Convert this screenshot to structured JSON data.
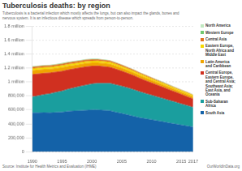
{
  "chart_data": {
    "type": "area",
    "title": "Tuberculosis deaths: by region",
    "subtitle": "Tuberculosis is a bacterial infection which mostly affects the lungs, but can also impact the glands, bones and\nnervous system. It is an infectious disease which spreads from person-to-person.",
    "annotations": [
      "Source: Institute for Health Metrics and Evaluation (IHME)",
      "OurWorldInData.org"
    ],
    "x": [
      1990,
      1991,
      1992,
      1993,
      1994,
      1995,
      1996,
      1997,
      1998,
      1999,
      2000,
      2001,
      2002,
      2003,
      2004,
      2005,
      2006,
      2007,
      2008,
      2009,
      2010,
      2011,
      2012,
      2013,
      2014,
      2015,
      2016,
      2017
    ],
    "series": [
      {
        "name": "South Asia",
        "color": "#1462a8",
        "values": [
          560000,
          562000,
          565000,
          562000,
          566000,
          571000,
          581000,
          586000,
          591000,
          596000,
          601000,
          601000,
          596000,
          591000,
          571000,
          551000,
          531000,
          511000,
          491000,
          476000,
          461000,
          446000,
          431000,
          416000,
          401000,
          386000,
          371000,
          356000
        ]
      },
      {
        "name": "Sub-Saharan\nAfrica",
        "color": "#1a9e9e",
        "values": [
          230000,
          242000,
          256000,
          271000,
          286000,
          301000,
          316000,
          331000,
          346000,
          361000,
          371000,
          381000,
          386000,
          391000,
          391000,
          391000,
          386000,
          381000,
          371000,
          361000,
          351000,
          341000,
          331000,
          321000,
          311000,
          301000,
          291000,
          281000
        ]
      },
      {
        "name": "Central Europe,\nEastern Europe,\nand Central Asia;\nSoutheast Asia;\nEast Asia, and\nOceania",
        "color": "#d03020",
        "values": [
          320000,
          315000,
          308000,
          300000,
          293000,
          286000,
          280000,
          274000,
          269000,
          264000,
          258000,
          251000,
          243000,
          235000,
          227000,
          219000,
          211000,
          203000,
          195000,
          187000,
          179000,
          171000,
          163000,
          155000,
          147000,
          139000,
          131000,
          123000
        ]
      },
      {
        "name": "Latin America\nand Caribbean",
        "color": "#f0a500",
        "values": [
          55000,
          55000,
          54000,
          53000,
          52000,
          51000,
          50000,
          49000,
          48000,
          47000,
          46000,
          45000,
          44000,
          43000,
          42000,
          41000,
          40000,
          39000,
          38000,
          37000,
          36000,
          35000,
          34000,
          33000,
          32000,
          31000,
          30000,
          29000
        ]
      },
      {
        "name": "Eastern Europe,\nNorth Africa and\nMiddle East",
        "color": "#f5d800",
        "values": [
          28000,
          28000,
          27000,
          27000,
          27000,
          27000,
          26000,
          26000,
          26000,
          26000,
          26000,
          25000,
          25000,
          25000,
          25000,
          24000,
          24000,
          24000,
          23000,
          23000,
          23000,
          22000,
          22000,
          22000,
          21000,
          21000,
          21000,
          20000
        ]
      },
      {
        "name": "Central Asia",
        "color": "#e07020",
        "values": [
          22000,
          22000,
          22000,
          23000,
          24000,
          25000,
          25000,
          25000,
          24000,
          24000,
          23000,
          22000,
          21000,
          20000,
          19000,
          18000,
          17000,
          16000,
          15000,
          14000,
          13000,
          12000,
          11000,
          10000,
          9000,
          8500,
          8000,
          7500
        ]
      },
      {
        "name": "Western Europe",
        "color": "#70c870",
        "values": [
          8000,
          7800,
          7600,
          7400,
          7200,
          7000,
          6800,
          6600,
          6400,
          6200,
          6000,
          5800,
          5600,
          5400,
          5200,
          5000,
          4800,
          4600,
          4400,
          4200,
          4000,
          3800,
          3600,
          3400,
          3200,
          3000,
          2800,
          2600
        ]
      },
      {
        "name": "North America",
        "color": "#c0e8c0",
        "values": [
          3000,
          2900,
          2800,
          2700,
          2600,
          2500,
          2400,
          2300,
          2200,
          2100,
          2000,
          1900,
          1800,
          1700,
          1600,
          1500,
          1400,
          1300,
          1200,
          1100,
          1000,
          950,
          900,
          850,
          800,
          750,
          700,
          650
        ]
      }
    ],
    "xlim": [
      1990,
      2017
    ],
    "xticks": [
      1990,
      1995,
      2000,
      2005,
      2010,
      2015,
      2017
    ],
    "ylim": [
      0,
      1800000
    ],
    "yticks": [
      0,
      {
        "value": 200000,
        "label": "200,000"
      },
      {
        "value": 400000,
        "label": "400,000"
      },
      {
        "value": 600000,
        "label": "600,000"
      },
      {
        "value": 800000,
        "label": "800,000"
      },
      {
        "value": 1000000,
        "label": "1 million"
      },
      {
        "value": 1200000,
        "label": "1.2 million"
      },
      {
        "value": 1400000,
        "label": "1.4 million"
      },
      {
        "value": 1600000,
        "label": "1.6 million"
      },
      {
        "value": 1800000,
        "label": "1.8 million"
      }
    ],
    "stacked": true,
    "grid": "y",
    "legend": "right"
  }
}
